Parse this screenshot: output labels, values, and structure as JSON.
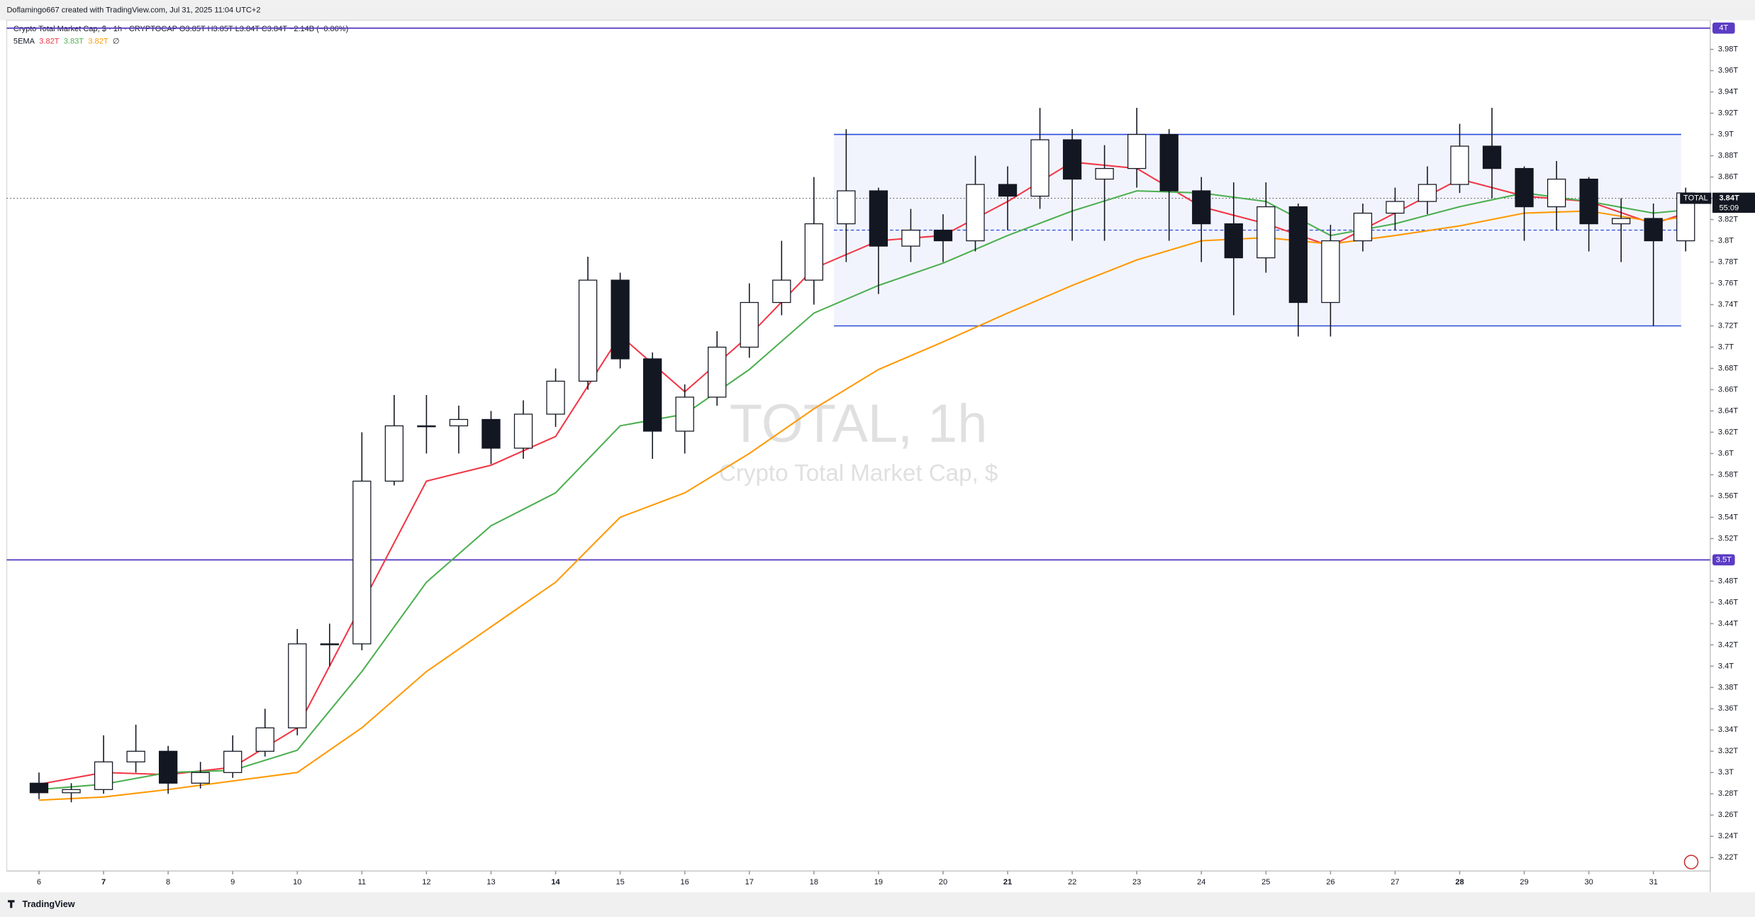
{
  "header": {
    "created": "Doflamingo667 created with TradingView.com, Jul 31, 2025 11:04 UTC+2",
    "symbol_line": "Crypto Total Market Cap, $ · 1h · CRYPTOCAP  O3.85T H3.85T L3.84T C3.84T −2.14B (−0.06%)",
    "indicator": {
      "name": "5EMA",
      "values": [
        "3.82T",
        "3.83T",
        "3.82T"
      ],
      "symbol": "∅"
    }
  },
  "watermark": {
    "title": "TOTAL, 1h",
    "subtitle": "Crypto Total Market Cap, $"
  },
  "footer": {
    "brand": "TradingView"
  },
  "chart_data": {
    "type": "candlestick",
    "xlim": [
      5.5,
      31.88
    ],
    "xticks": [
      6,
      7,
      8,
      9,
      10,
      11,
      12,
      13,
      14,
      15,
      16,
      17,
      18,
      19,
      20,
      21,
      22,
      23,
      24,
      25,
      26,
      27,
      28,
      29,
      30,
      31
    ],
    "bold_xticks": [
      7,
      14,
      21,
      28
    ],
    "ylim": [
      3.2074,
      4.0074
    ],
    "yticks": [
      {
        "value": 3.22,
        "label": "3.22T"
      },
      {
        "value": 3.24,
        "label": "3.24T"
      },
      {
        "value": 3.26,
        "label": "3.26T"
      },
      {
        "value": 3.28,
        "label": "3.28T"
      },
      {
        "value": 3.3,
        "label": "3.3T"
      },
      {
        "value": 3.32,
        "label": "3.32T"
      },
      {
        "value": 3.34,
        "label": "3.34T"
      },
      {
        "value": 3.36,
        "label": "3.36T"
      },
      {
        "value": 3.38,
        "label": "3.38T"
      },
      {
        "value": 3.4,
        "label": "3.4T"
      },
      {
        "value": 3.42,
        "label": "3.42T"
      },
      {
        "value": 3.44,
        "label": "3.44T"
      },
      {
        "value": 3.46,
        "label": "3.46T"
      },
      {
        "value": 3.48,
        "label": "3.48T"
      },
      {
        "value": 3.52,
        "label": "3.52T"
      },
      {
        "value": 3.54,
        "label": "3.54T"
      },
      {
        "value": 3.56,
        "label": "3.56T"
      },
      {
        "value": 3.58,
        "label": "3.58T"
      },
      {
        "value": 3.6,
        "label": "3.6T"
      },
      {
        "value": 3.62,
        "label": "3.62T"
      },
      {
        "value": 3.64,
        "label": "3.64T"
      },
      {
        "value": 3.66,
        "label": "3.66T"
      },
      {
        "value": 3.68,
        "label": "3.68T"
      },
      {
        "value": 3.7,
        "label": "3.7T"
      },
      {
        "value": 3.72,
        "label": "3.72T"
      },
      {
        "value": 3.74,
        "label": "3.74T"
      },
      {
        "value": 3.76,
        "label": "3.76T"
      },
      {
        "value": 3.78,
        "label": "3.78T"
      },
      {
        "value": 3.8,
        "label": "3.8T"
      },
      {
        "value": 3.82,
        "label": "3.82T"
      },
      {
        "value": 3.84,
        "label": "3.84T"
      },
      {
        "value": 3.86,
        "label": "3.86T"
      },
      {
        "value": 3.88,
        "label": "3.88T"
      },
      {
        "value": 3.9,
        "label": "3.9T"
      },
      {
        "value": 3.92,
        "label": "3.92T"
      },
      {
        "value": 3.94,
        "label": "3.94T"
      },
      {
        "value": 3.96,
        "label": "3.96T"
      },
      {
        "value": 3.98,
        "label": "3.98T"
      }
    ],
    "hlines": [
      {
        "value": 4,
        "label": "4T"
      },
      {
        "value": 3.5,
        "label": "3.5T"
      }
    ],
    "hline_color": "#5b3cc4",
    "range_box": {
      "x": [
        18.31,
        31.43
      ],
      "y": [
        3.72,
        3.9
      ],
      "mid": 3.81,
      "color": "#2a4bd7"
    },
    "price_label": {
      "symbol": "TOTAL",
      "value": 3.84,
      "label": "3.84T",
      "countdown": "55:09"
    },
    "x": [
      6,
      6.5,
      7,
      7.5,
      8,
      8.5,
      9,
      9.5,
      10,
      10.5,
      11,
      11.5,
      12,
      12.5,
      13,
      13.5,
      14,
      14.5,
      15,
      15.5,
      16,
      16.5,
      17,
      17.5,
      18,
      18.5,
      19,
      19.5,
      20,
      20.5,
      21,
      21.5,
      22,
      22.5,
      23,
      23.5,
      24,
      24.5,
      25,
      25.5,
      26,
      26.5,
      27,
      27.5,
      28,
      28.5,
      29,
      29.5,
      30,
      30.5,
      31,
      31.5
    ],
    "open": [
      3.29,
      3.281,
      3.284,
      3.31,
      3.32,
      3.29,
      3.3,
      3.32,
      3.342,
      3.421,
      3.421,
      3.574,
      3.626,
      3.626,
      3.632,
      3.605,
      3.637,
      3.668,
      3.763,
      3.689,
      3.621,
      3.653,
      3.7,
      3.742,
      3.763,
      3.816,
      3.847,
      3.795,
      3.81,
      3.8,
      3.853,
      3.842,
      3.895,
      3.858,
      3.868,
      3.9,
      3.847,
      3.816,
      3.784,
      3.832,
      3.742,
      3.8,
      3.826,
      3.837,
      3.853,
      3.889,
      3.868,
      3.832,
      3.858,
      3.816,
      3.821,
      3.8
    ],
    "high": [
      3.3,
      3.29,
      3.335,
      3.345,
      3.325,
      3.31,
      3.335,
      3.36,
      3.435,
      3.44,
      3.62,
      3.655,
      3.655,
      3.645,
      3.64,
      3.65,
      3.68,
      3.785,
      3.77,
      3.695,
      3.665,
      3.715,
      3.76,
      3.8,
      3.86,
      3.905,
      3.85,
      3.83,
      3.825,
      3.88,
      3.87,
      3.925,
      3.905,
      3.89,
      3.925,
      3.905,
      3.86,
      3.855,
      3.855,
      3.835,
      3.815,
      3.835,
      3.85,
      3.87,
      3.91,
      3.925,
      3.87,
      3.875,
      3.86,
      3.84,
      3.835,
      3.85
    ],
    "low": [
      3.275,
      3.272,
      3.28,
      3.3,
      3.28,
      3.285,
      3.295,
      3.315,
      3.335,
      3.4,
      3.415,
      3.57,
      3.6,
      3.6,
      3.59,
      3.595,
      3.625,
      3.66,
      3.68,
      3.595,
      3.6,
      3.645,
      3.69,
      3.73,
      3.74,
      3.78,
      3.75,
      3.78,
      3.78,
      3.79,
      3.81,
      3.83,
      3.8,
      3.8,
      3.85,
      3.8,
      3.78,
      3.73,
      3.77,
      3.71,
      3.71,
      3.79,
      3.81,
      3.825,
      3.845,
      3.84,
      3.8,
      3.81,
      3.79,
      3.78,
      3.72,
      3.79
    ],
    "close": [
      3.281,
      3.284,
      3.31,
      3.32,
      3.29,
      3.3,
      3.32,
      3.342,
      3.421,
      3.421,
      3.574,
      3.626,
      3.626,
      3.632,
      3.605,
      3.637,
      3.668,
      3.763,
      3.689,
      3.621,
      3.653,
      3.7,
      3.742,
      3.763,
      3.816,
      3.847,
      3.795,
      3.81,
      3.8,
      3.853,
      3.842,
      3.895,
      3.858,
      3.868,
      3.9,
      3.847,
      3.816,
      3.784,
      3.832,
      3.742,
      3.8,
      3.826,
      3.837,
      3.853,
      3.889,
      3.868,
      3.832,
      3.858,
      3.816,
      3.821,
      3.8,
      3.845
    ],
    "lines": [
      {
        "color": "#f23645",
        "x": [
          6,
          7,
          8,
          9,
          10,
          11,
          12,
          13,
          14,
          15,
          16,
          17,
          18,
          19,
          20,
          21,
          22,
          23,
          24,
          25,
          26,
          27,
          28,
          29,
          30,
          31,
          31.5
        ],
        "values": [
          3.289,
          3.3,
          3.298,
          3.305,
          3.342,
          3.458,
          3.574,
          3.589,
          3.616,
          3.711,
          3.658,
          3.711,
          3.774,
          3.8,
          3.805,
          3.837,
          3.874,
          3.868,
          3.832,
          3.816,
          3.795,
          3.826,
          3.858,
          3.842,
          3.837,
          3.816,
          3.826
        ]
      },
      {
        "color": "#4caf50",
        "x": [
          6,
          7,
          8,
          9,
          10,
          11,
          12,
          13,
          14,
          15,
          16,
          17,
          18,
          19,
          20,
          21,
          22,
          23,
          24,
          25,
          26,
          27,
          28,
          29,
          30,
          31,
          31.5
        ],
        "values": [
          3.284,
          3.289,
          3.3,
          3.302,
          3.321,
          3.395,
          3.479,
          3.532,
          3.563,
          3.626,
          3.637,
          3.679,
          3.732,
          3.758,
          3.779,
          3.805,
          3.828,
          3.847,
          3.845,
          3.837,
          3.805,
          3.816,
          3.832,
          3.845,
          3.837,
          3.826,
          3.829
        ]
      },
      {
        "color": "#ff9800",
        "x": [
          6,
          7,
          8,
          9,
          10,
          11,
          12,
          13,
          14,
          15,
          16,
          17,
          18,
          19,
          20,
          21,
          22,
          23,
          24,
          25,
          26,
          27,
          28,
          29,
          30,
          31,
          31.5
        ],
        "values": [
          3.274,
          3.277,
          3.284,
          3.292,
          3.3,
          3.342,
          3.395,
          3.437,
          3.479,
          3.54,
          3.563,
          3.6,
          3.642,
          3.679,
          3.705,
          3.732,
          3.758,
          3.782,
          3.8,
          3.803,
          3.797,
          3.805,
          3.814,
          3.826,
          3.828,
          3.818,
          3.823
        ]
      }
    ]
  }
}
